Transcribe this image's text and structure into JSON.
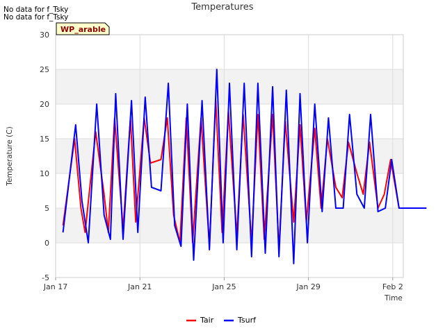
{
  "notes": [
    "No data for f_Tsky",
    "No data for f_Tsky"
  ],
  "badge": "WP_arable",
  "colors": {
    "tair": "#ff0000",
    "tsurf": "#0000ff",
    "band": "#f2f2f2",
    "grid": "#dddddd",
    "badge_bg": "#ffffcc"
  },
  "chart_data": {
    "type": "line",
    "title": "Temperatures",
    "xlabel": "Time",
    "ylabel": "Temperature (C)",
    "ylim": [
      -5,
      30
    ],
    "yticks": [
      -5,
      0,
      5,
      10,
      15,
      20,
      25,
      30
    ],
    "xlim": [
      0,
      16.5
    ],
    "xticks": [
      {
        "value": 0,
        "label": "Jan 17"
      },
      {
        "value": 4,
        "label": "Jan 21"
      },
      {
        "value": 8,
        "label": "Jan 25"
      },
      {
        "value": 12,
        "label": "Jan 29"
      },
      {
        "value": 16,
        "label": "Feb 2"
      }
    ],
    "legend": "bottom-center",
    "series": [
      {
        "name": "Tair",
        "color": "#ff0000",
        "x": [
          0.35,
          0.9,
          1.2,
          1.4,
          1.9,
          2.3,
          2.5,
          2.8,
          3.2,
          3.55,
          3.8,
          4.2,
          4.5,
          5.0,
          5.3,
          5.6,
          5.9,
          6.2,
          6.5,
          6.9,
          7.3,
          7.6,
          7.9,
          8.2,
          8.6,
          8.9,
          9.3,
          9.6,
          9.9,
          10.3,
          10.6,
          10.9,
          11.3,
          11.6,
          11.9,
          12.3,
          12.6,
          12.9,
          13.3,
          13.6,
          13.9,
          14.3,
          14.6,
          14.9,
          15.3,
          15.6,
          15.9,
          16.3,
          16.6,
          16.9,
          17.2,
          17.6
        ],
        "y": [
          2.5,
          15,
          5,
          1.5,
          16,
          7,
          1.5,
          18,
          2,
          18,
          3,
          18,
          11.5,
          12,
          18,
          4,
          0,
          18,
          0,
          18,
          -0.5,
          20.5,
          1.5,
          19,
          1,
          18.5,
          0,
          18.5,
          0.5,
          18.5,
          -1,
          17.5,
          3,
          17,
          3,
          16.5,
          5,
          15,
          8,
          6.5,
          14.5,
          10,
          7,
          14.5,
          5,
          7,
          12,
          5,
          5,
          5,
          5,
          5
        ]
      },
      {
        "name": "Tsurf",
        "color": "#0000ff",
        "x": [
          0.35,
          0.95,
          1.25,
          1.55,
          1.95,
          2.3,
          2.6,
          2.85,
          3.2,
          3.6,
          3.9,
          4.25,
          4.55,
          5.0,
          5.35,
          5.65,
          5.95,
          6.25,
          6.55,
          6.95,
          7.3,
          7.65,
          7.95,
          8.25,
          8.6,
          8.95,
          9.3,
          9.6,
          9.95,
          10.3,
          10.6,
          10.95,
          11.3,
          11.6,
          11.95,
          12.3,
          12.65,
          12.95,
          13.3,
          13.65,
          13.95,
          14.3,
          14.65,
          14.95,
          15.3,
          15.65,
          15.95,
          16.3,
          16.6,
          16.9,
          17.2,
          17.6
        ],
        "y": [
          1.5,
          17,
          6,
          0,
          20,
          4,
          0.5,
          21.5,
          0.5,
          20.5,
          1.5,
          21,
          8,
          7.5,
          23,
          2.5,
          -0.5,
          20,
          -2.5,
          20.5,
          -1,
          25,
          0,
          23,
          -1,
          23,
          -2,
          23,
          -1.5,
          22.5,
          -2,
          22,
          -3,
          21.5,
          0,
          20,
          4.5,
          18,
          5,
          5,
          18.5,
          7,
          5,
          18.5,
          4.5,
          5,
          12,
          5,
          5,
          5,
          5,
          5
        ]
      }
    ]
  }
}
